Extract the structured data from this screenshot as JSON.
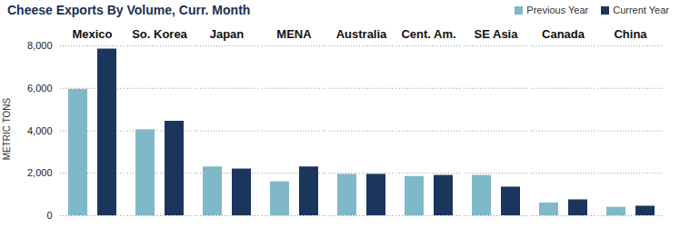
{
  "chart_data": {
    "type": "bar",
    "title": "Cheese Exports By Volume, Curr. Month",
    "categories": [
      "Mexico",
      "So. Korea",
      "Japan",
      "MENA",
      "Australia",
      "Cent. Am.",
      "SE Asia",
      "Canada",
      "China"
    ],
    "series": [
      {
        "name": "Previous Year",
        "color": "#7fb9c9",
        "values": [
          5950,
          4050,
          2300,
          1600,
          1950,
          1850,
          1900,
          600,
          400
        ]
      },
      {
        "name": "Current  Year",
        "color": "#1b365d",
        "values": [
          7850,
          4450,
          2200,
          2300,
          1950,
          1900,
          1350,
          750,
          450
        ]
      }
    ],
    "y_label": "METRIC TONS",
    "ylim": [
      0,
      8000
    ],
    "yticks": [
      0,
      {
        "value": 2000,
        "label": "2,000"
      },
      {
        "value": 4000,
        "label": "4,000"
      },
      {
        "value": 6000,
        "label": "6,000"
      },
      {
        "value": 8000,
        "label": "8,000"
      }
    ],
    "grid": true,
    "legend": "top-right"
  }
}
